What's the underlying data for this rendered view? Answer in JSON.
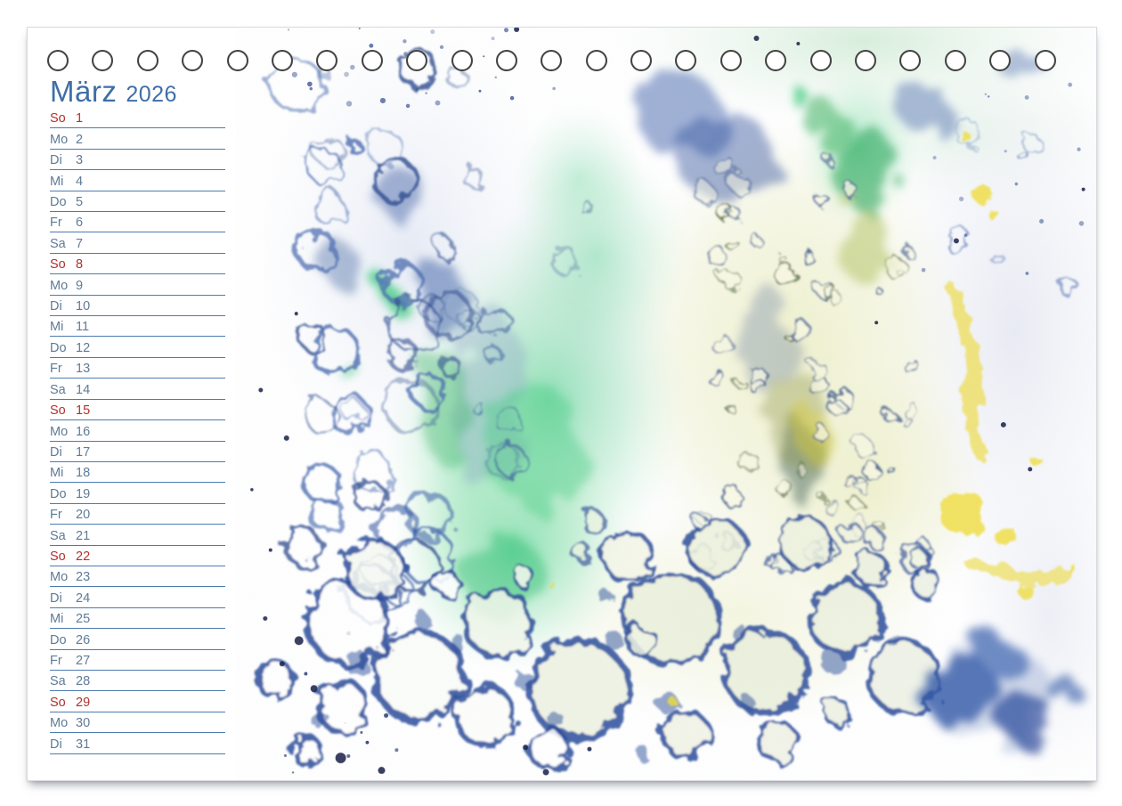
{
  "calendar": {
    "month_label": "März",
    "year_label": "2026",
    "days": [
      {
        "weekday": "So",
        "number": 1,
        "is_sunday": true
      },
      {
        "weekday": "Mo",
        "number": 2,
        "is_sunday": false
      },
      {
        "weekday": "Di",
        "number": 3,
        "is_sunday": false
      },
      {
        "weekday": "Mi",
        "number": 4,
        "is_sunday": false
      },
      {
        "weekday": "Do",
        "number": 5,
        "is_sunday": false
      },
      {
        "weekday": "Fr",
        "number": 6,
        "is_sunday": false
      },
      {
        "weekday": "Sa",
        "number": 7,
        "is_sunday": false
      },
      {
        "weekday": "So",
        "number": 8,
        "is_sunday": true
      },
      {
        "weekday": "Mo",
        "number": 9,
        "is_sunday": false
      },
      {
        "weekday": "Di",
        "number": 10,
        "is_sunday": false
      },
      {
        "weekday": "Mi",
        "number": 11,
        "is_sunday": false
      },
      {
        "weekday": "Do",
        "number": 12,
        "is_sunday": false
      },
      {
        "weekday": "Fr",
        "number": 13,
        "is_sunday": false
      },
      {
        "weekday": "Sa",
        "number": 14,
        "is_sunday": false
      },
      {
        "weekday": "So",
        "number": 15,
        "is_sunday": true
      },
      {
        "weekday": "Mo",
        "number": 16,
        "is_sunday": false
      },
      {
        "weekday": "Di",
        "number": 17,
        "is_sunday": false
      },
      {
        "weekday": "Mi",
        "number": 18,
        "is_sunday": false
      },
      {
        "weekday": "Do",
        "number": 19,
        "is_sunday": false
      },
      {
        "weekday": "Fr",
        "number": 20,
        "is_sunday": false
      },
      {
        "weekday": "Sa",
        "number": 21,
        "is_sunday": false
      },
      {
        "weekday": "So",
        "number": 22,
        "is_sunday": true
      },
      {
        "weekday": "Mo",
        "number": 23,
        "is_sunday": false
      },
      {
        "weekday": "Di",
        "number": 24,
        "is_sunday": false
      },
      {
        "weekday": "Mi",
        "number": 25,
        "is_sunday": false
      },
      {
        "weekday": "Do",
        "number": 26,
        "is_sunday": false
      },
      {
        "weekday": "Fr",
        "number": 27,
        "is_sunday": false
      },
      {
        "weekday": "Sa",
        "number": 28,
        "is_sunday": false
      },
      {
        "weekday": "So",
        "number": 29,
        "is_sunday": true
      },
      {
        "weekday": "Mo",
        "number": 30,
        "is_sunday": false
      },
      {
        "weekday": "Di",
        "number": 31,
        "is_sunday": false
      }
    ]
  },
  "binding": {
    "hole_count": 23
  },
  "artwork": {
    "name": "watercolor-bubble-print",
    "description": "Abstract watercolor bubble print in blue, green and yellow on textured paper"
  },
  "theme": {
    "title_color": "#3f6ea7",
    "weekday_color": "#5f7b97",
    "sunday_color": "#b0312e",
    "line_color": "#4d7bb0",
    "hole_ring_color": "#424242",
    "page_edge_color": "#d9dadf",
    "artwork_palette": [
      "#3b5fa8",
      "#2c4a8e",
      "#2b4d9c",
      "#3ecb7d",
      "#2fae58",
      "#f0dd3f",
      "#e3f2e4",
      "#eef0c9",
      "#2f55a6"
    ]
  }
}
